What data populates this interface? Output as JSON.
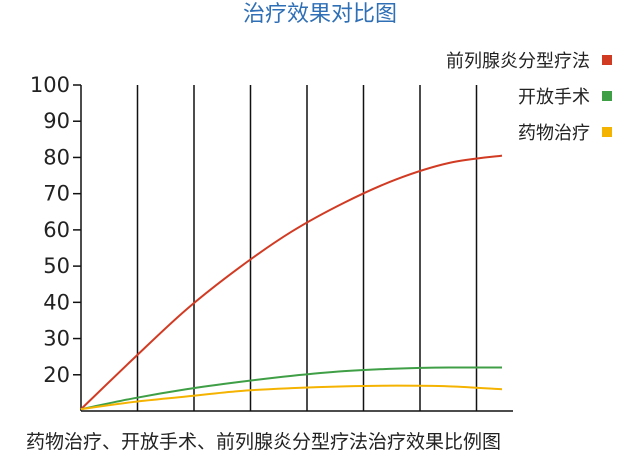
{
  "title": "治疗效果对比图",
  "caption": "药物治疗、开放手术、前列腺炎分型疗法治疗效果比例图",
  "chart_data": {
    "type": "line",
    "title": "治疗效果对比图",
    "xlabel": "",
    "ylabel": "",
    "ylim": [
      10,
      100
    ],
    "yticks": [
      20,
      30,
      40,
      50,
      60,
      70,
      80,
      90,
      100
    ],
    "x_points": 8,
    "x": [
      0,
      1,
      2,
      3,
      4,
      5,
      6,
      7,
      8
    ],
    "vertical_grid": true,
    "legend_position": "top-right",
    "series": [
      {
        "name": "前列腺炎分型疗法",
        "color": "#d23b23",
        "values": [
          10.5,
          24.5,
          38,
          49.5,
          59.5,
          67.5,
          74,
          78.5,
          80.5
        ]
      },
      {
        "name": "开放手术",
        "color": "#3f9f46",
        "values": [
          10.5,
          13.5,
          16,
          18,
          19.7,
          21,
          21.7,
          22,
          22
        ]
      },
      {
        "name": "药物治疗",
        "color": "#f5b301",
        "values": [
          10.5,
          12.5,
          14,
          15.5,
          16.3,
          16.8,
          17,
          16.8,
          16
        ]
      }
    ]
  }
}
